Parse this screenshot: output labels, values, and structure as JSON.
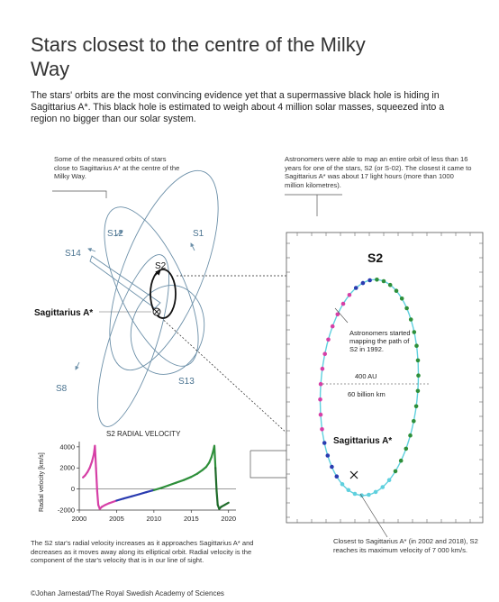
{
  "title": "Stars closest to the centre of the Milky Way",
  "intro": "The stars' orbits are the most convincing evidence yet that a supermassive black hole is hiding in Sagittarius A*. This black hole is estimated to weigh about 4 million solar masses, squeezed into a region no bigger than our solar system.",
  "notes": {
    "orbits": "Some of the measured orbits of stars close to Sagittarius A* at the centre of the Milky Way.",
    "s2": "Astronomers were able to map an entire orbit of less than 16 years for one of the stars, S2 (or S-02). The closest it came to Sagittarius A* was about 17 light hours (more than 1000 million kilometres).",
    "radial_velocity": "The S2 star's radial velocity increases as it approaches Sagittarius A* and decreases as it moves away along its elliptical orbit. Radial velocity is the component of the star's velocity that is in our line of sight.",
    "closest": "Closest to Sagittarius A* (in 2002 and 2018), S2 reaches its maximum velocity of 7 000 km/s."
  },
  "orbit_labels": {
    "s12": "S12",
    "s1": "S1",
    "s14": "S14",
    "s2": "S2",
    "sgr": "Sagittarius A*",
    "s13": "S13",
    "s8": "S8"
  },
  "s2_panel": {
    "title": "S2",
    "started": "Astronomers started mapping the path of S2 in 1992.",
    "au": "400 AU",
    "km": "60 billion km",
    "sgr": "Sagittarius A*"
  },
  "colors": {
    "orbit": "#6b8fa8",
    "s2_orbit": "#5fd0de",
    "magenta": "#d63fa6",
    "blue": "#2a3bb0",
    "green": "#2e8f3a",
    "pink_marker": "#d94f7a"
  },
  "chart_data": {
    "type": "line",
    "title": "S2 RADIAL VELOCITY",
    "xlabel": "",
    "ylabel": "Radial velocity [km/s]",
    "xlim": [
      2000,
      2021
    ],
    "ylim": [
      -2000,
      4500
    ],
    "xticks": [
      2000,
      2005,
      2010,
      2015,
      2020
    ],
    "yticks": [
      4000,
      2000,
      0,
      -2000
    ],
    "series": [
      {
        "x": [
          2000.5,
          2000.8,
          2001.1,
          2001.4,
          2001.7,
          2001.95,
          2002.1,
          2002.25,
          2002.4,
          2002.55,
          2002.75,
          2003.0,
          2003.5,
          2004.0,
          2005.0,
          2006.0,
          2007.0,
          2008.0,
          2009.0,
          2010.0,
          2011.0,
          2012.0,
          2013.0,
          2014.0,
          2015.0,
          2015.8,
          2016.5,
          2017.0,
          2017.4,
          2017.7,
          2017.95,
          2018.1,
          2018.25,
          2018.4,
          2018.55,
          2018.75,
          2019.0,
          2019.5,
          2020.0
        ],
        "y": [
          1100,
          1300,
          1600,
          2000,
          2600,
          3300,
          4100,
          2000,
          -200,
          -1500,
          -1900,
          -1700,
          -1500,
          -1350,
          -1100,
          -900,
          -700,
          -500,
          -300,
          -100,
          100,
          350,
          600,
          850,
          1150,
          1450,
          1800,
          2100,
          2500,
          3000,
          3600,
          4100,
          2000,
          -200,
          -1500,
          -1900,
          -1700,
          -1500,
          -1300
        ]
      }
    ]
  }
}
